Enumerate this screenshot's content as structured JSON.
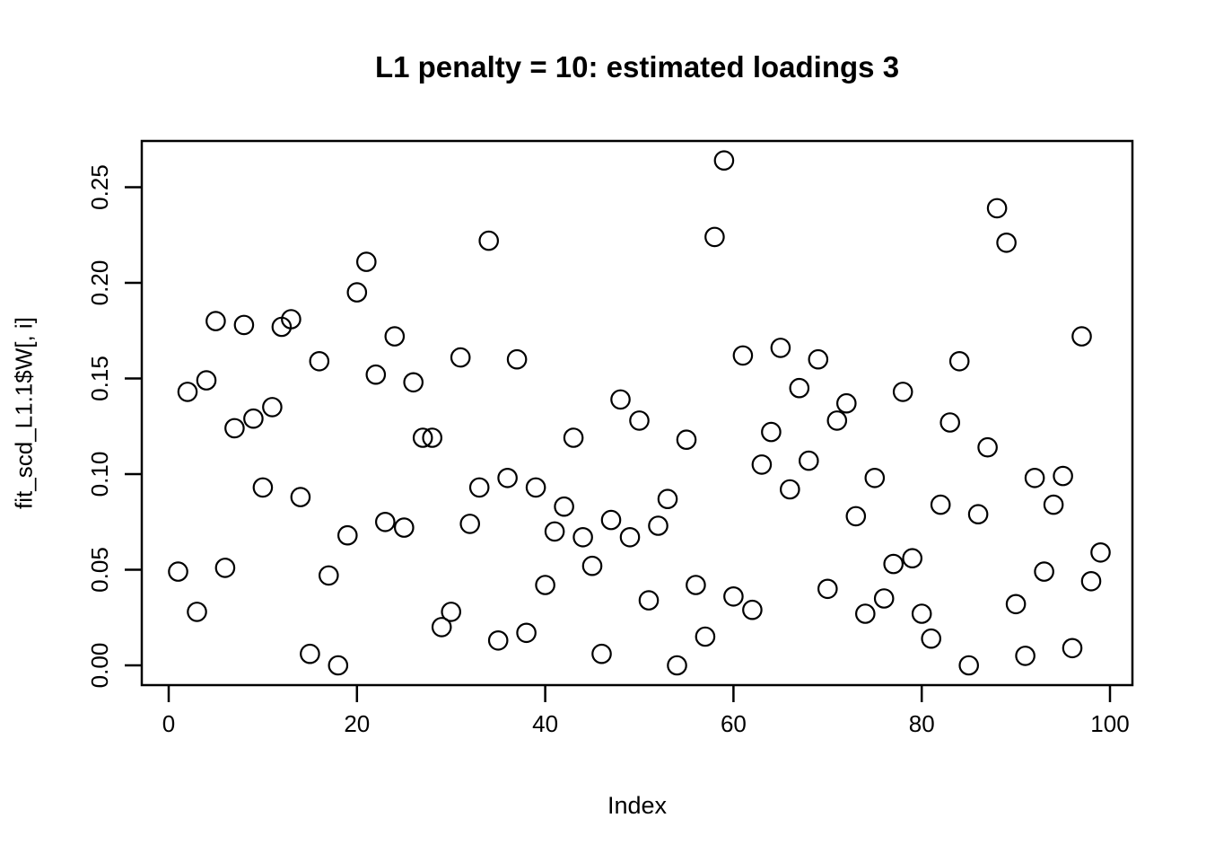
{
  "chart_data": {
    "type": "scatter",
    "title": "L1 penalty = 10: estimated loadings 3",
    "xlabel": "Index",
    "ylabel": "fit_scd_L1.1$W[, i]",
    "x_tick_labels": [
      "0",
      "20",
      "40",
      "60",
      "80",
      "100"
    ],
    "x_tick_values": [
      0,
      20,
      40,
      60,
      80,
      100
    ],
    "y_tick_labels": [
      "0.00",
      "0.05",
      "0.10",
      "0.15",
      "0.20",
      "0.25"
    ],
    "y_tick_values": [
      0.0,
      0.05,
      0.1,
      0.15,
      0.2,
      0.25
    ],
    "xlim": [
      -2.9,
      102.4
    ],
    "ylim": [
      -0.0103,
      0.2742
    ],
    "grid": false,
    "legend": null,
    "marker": "open-circle",
    "point_color": "#000000",
    "background_color": "#ffffff",
    "x": [
      1,
      2,
      3,
      4,
      5,
      6,
      7,
      8,
      9,
      10,
      11,
      12,
      13,
      14,
      15,
      16,
      17,
      18,
      19,
      20,
      21,
      22,
      23,
      24,
      25,
      26,
      27,
      28,
      29,
      30,
      31,
      32,
      33,
      34,
      35,
      36,
      37,
      38,
      39,
      40,
      41,
      42,
      43,
      44,
      45,
      46,
      47,
      48,
      49,
      50,
      51,
      52,
      53,
      54,
      55,
      56,
      57,
      58,
      59,
      60,
      61,
      62,
      63,
      64,
      65,
      66,
      67,
      68,
      69,
      70,
      71,
      72,
      73,
      74,
      75,
      76,
      77,
      78,
      79,
      80,
      81,
      82,
      83,
      84,
      85,
      86,
      87,
      88,
      89,
      90,
      91,
      92,
      93,
      94,
      95,
      96,
      97,
      98,
      99
    ],
    "y": [
      0.049,
      0.143,
      0.028,
      0.149,
      0.18,
      0.051,
      0.124,
      0.178,
      0.129,
      0.093,
      0.135,
      0.177,
      0.181,
      0.088,
      0.006,
      0.159,
      0.047,
      0.0,
      0.068,
      0.195,
      0.211,
      0.152,
      0.075,
      0.172,
      0.072,
      0.148,
      0.119,
      0.119,
      0.02,
      0.028,
      0.161,
      0.074,
      0.093,
      0.222,
      0.013,
      0.098,
      0.16,
      0.017,
      0.093,
      0.042,
      0.07,
      0.083,
      0.119,
      0.067,
      0.052,
      0.006,
      0.076,
      0.139,
      0.067,
      0.128,
      0.034,
      0.073,
      0.087,
      0.0,
      0.118,
      0.042,
      0.015,
      0.224,
      0.264,
      0.036,
      0.162,
      0.029,
      0.105,
      0.122,
      0.166,
      0.092,
      0.145,
      0.107,
      0.16,
      0.04,
      0.128,
      0.137,
      0.078,
      0.027,
      0.098,
      0.035,
      0.053,
      0.143,
      0.056,
      0.027,
      0.014,
      0.084,
      0.127,
      0.159,
      0.0,
      0.079,
      0.114,
      0.239,
      0.221,
      0.032,
      0.005,
      0.098,
      0.049,
      0.084,
      0.099,
      0.009,
      0.172,
      0.044,
      0.059
    ]
  }
}
